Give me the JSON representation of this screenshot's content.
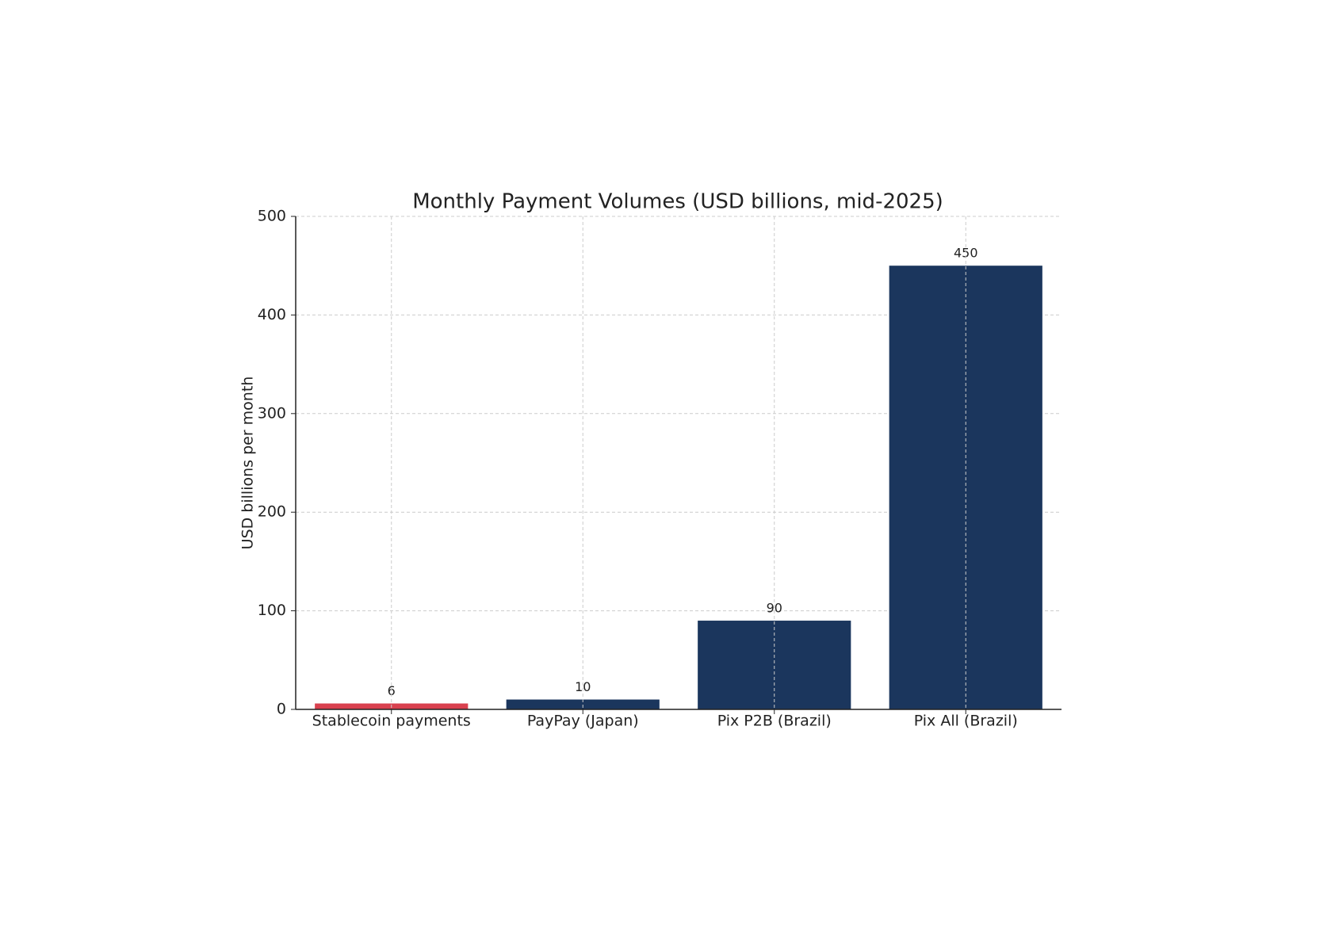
{
  "chart_data": {
    "type": "bar",
    "title": "Monthly Payment Volumes (USD billions, mid-2025)",
    "ylabel": "USD billions per month",
    "categories": [
      "Stablecoin payments",
      "PayPay (Japan)",
      "Pix P2B (Brazil)",
      "Pix All (Brazil)"
    ],
    "values": [
      6,
      10,
      90,
      450
    ],
    "colors": [
      "#d9414f",
      "#1b365d",
      "#1b365d",
      "#1b365d"
    ],
    "ylim": [
      0,
      500
    ],
    "yticks": [
      0,
      100,
      200,
      300,
      400,
      500
    ],
    "grid": true
  }
}
